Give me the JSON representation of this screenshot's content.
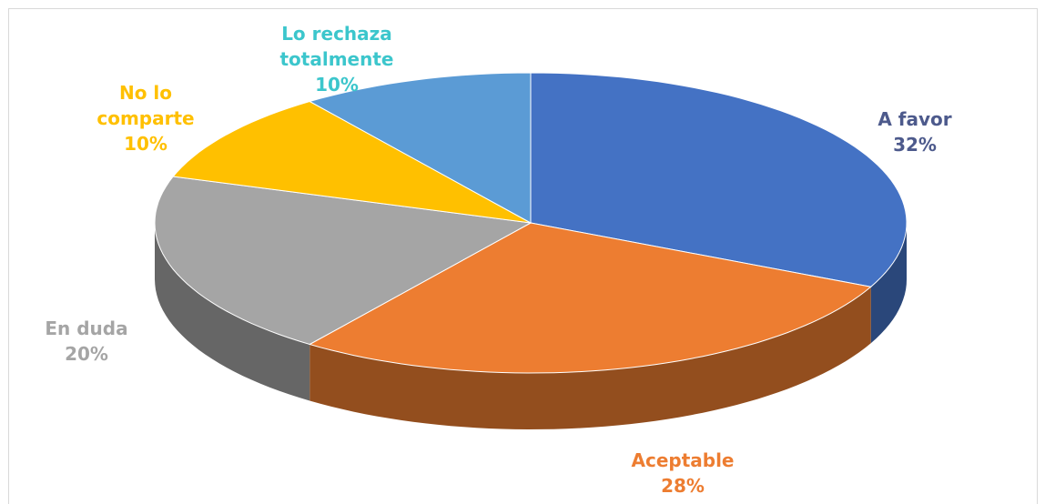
{
  "chart_data": {
    "type": "pie3d",
    "categories": [
      "A favor",
      "Aceptable",
      "En duda",
      "No lo comparte",
      "Lo rechaza totalmente"
    ],
    "values": [
      32,
      28,
      20,
      10,
      10
    ],
    "value_labels": [
      "32%",
      "28%",
      "20%",
      "10%",
      "10%"
    ],
    "colors": [
      "#4472c4",
      "#ed7d31",
      "#a5a5a5",
      "#ffc000",
      "#5b9bd5"
    ],
    "label_colors": [
      "#4d5a8c",
      "#ed7d31",
      "#a5a5a5",
      "#ffc000",
      "#3cc6cc"
    ]
  }
}
